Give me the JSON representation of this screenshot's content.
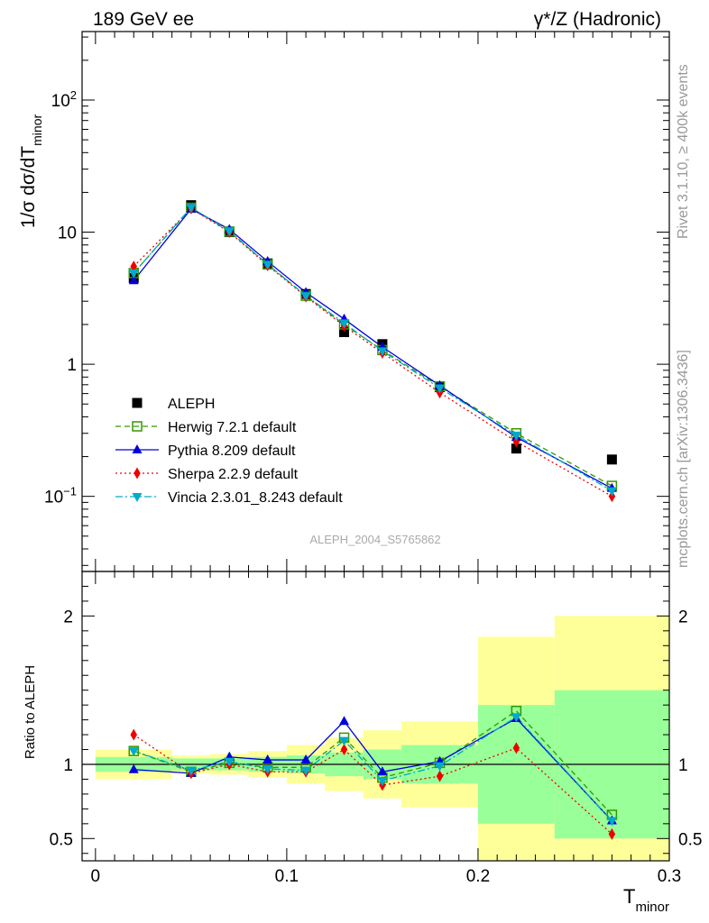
{
  "header": {
    "left": "189 GeV ee",
    "right": "γ*/Z (Hadronic)"
  },
  "side_text": {
    "rivet": "Rivet 3.1.10, ≥ 400k events",
    "mcplots": "mcplots.cern.ch [arXiv:1306.3436]"
  },
  "analysis_tag": "ALEPH_2004_S5765862",
  "chart_data": [
    {
      "type": "scatter",
      "panel": "main",
      "ylabel": "1/σ  dσ/dT",
      "ylabel_sub": "minor",
      "yscale": "log",
      "ylim": [
        0.027,
        330
      ],
      "xlim": [
        -0.007,
        0.3
      ],
      "y_ticks": [
        {
          "v": 0.1,
          "base": "10",
          "exp": "−1"
        },
        {
          "v": 1,
          "base": "1",
          "exp": ""
        },
        {
          "v": 10,
          "base": "10",
          "exp": ""
        },
        {
          "v": 100,
          "base": "10",
          "exp": "2"
        }
      ],
      "data": {
        "name": "ALEPH",
        "x": [
          0.02,
          0.05,
          0.07,
          0.09,
          0.11,
          0.13,
          0.15,
          0.18,
          0.22,
          0.27
        ],
        "y": [
          4.5,
          16.0,
          10.0,
          5.8,
          3.4,
          1.75,
          1.42,
          0.67,
          0.23,
          0.19
        ]
      },
      "series": [
        {
          "name": "Herwig 7.2.1 default",
          "color": "#339900",
          "marker": "open-square",
          "line": "dashed",
          "y": [
            4.9,
            15.3,
            10.1,
            5.7,
            3.3,
            2.0,
            1.28,
            0.68,
            0.3,
            0.12
          ]
        },
        {
          "name": "Pythia 8.209 default",
          "color": "#0000dd",
          "marker": "triangle-up",
          "line": "solid",
          "y": [
            4.3,
            15.0,
            10.5,
            6.0,
            3.5,
            2.2,
            1.35,
            0.69,
            0.28,
            0.115
          ]
        },
        {
          "name": "Sherpa 2.2.9 default",
          "color": "#ee0000",
          "marker": "diamond",
          "line": "dotted",
          "y": [
            5.5,
            15.1,
            10.0,
            5.6,
            3.25,
            1.95,
            1.22,
            0.61,
            0.26,
            0.1
          ]
        },
        {
          "name": "Vincia 2.3.01_8.243 default",
          "color": "#00aacc",
          "marker": "triangle-down",
          "line": "dashdot",
          "y": [
            4.9,
            15.4,
            10.2,
            5.7,
            3.3,
            2.05,
            1.26,
            0.66,
            0.29,
            0.11
          ]
        }
      ]
    },
    {
      "type": "scatter",
      "panel": "ratio",
      "ylabel": "Ratio to ALEPH",
      "xlabel": "T",
      "xlabel_sub": "minor",
      "ylim": [
        0.35,
        2.3
      ],
      "xlim": [
        -0.007,
        0.3
      ],
      "y_ticks": [
        0.5,
        1,
        2
      ],
      "x_ticks": [
        0,
        0.1,
        0.2,
        0.3
      ],
      "x_tick_labels": [
        "0",
        "0.1",
        "0.2",
        "0.3"
      ],
      "y_tick_labels": [
        "0.5",
        "1",
        "2"
      ],
      "bins": [
        {
          "lo": 0.0,
          "hi": 0.04,
          "stat": [
            0.95,
            1.05
          ],
          "total": [
            0.9,
            1.1
          ]
        },
        {
          "lo": 0.04,
          "hi": 0.06,
          "stat": [
            0.96,
            1.04
          ],
          "total": [
            0.94,
            1.06
          ]
        },
        {
          "lo": 0.06,
          "hi": 0.08,
          "stat": [
            0.96,
            1.04
          ],
          "total": [
            0.93,
            1.07
          ]
        },
        {
          "lo": 0.08,
          "hi": 0.1,
          "stat": [
            0.95,
            1.05
          ],
          "total": [
            0.91,
            1.09
          ]
        },
        {
          "lo": 0.1,
          "hi": 0.12,
          "stat": [
            0.94,
            1.06
          ],
          "total": [
            0.87,
            1.13
          ]
        },
        {
          "lo": 0.12,
          "hi": 0.14,
          "stat": [
            0.92,
            1.08
          ],
          "total": [
            0.82,
            1.18
          ]
        },
        {
          "lo": 0.14,
          "hi": 0.16,
          "stat": [
            0.9,
            1.1
          ],
          "total": [
            0.77,
            1.23
          ]
        },
        {
          "lo": 0.16,
          "hi": 0.2,
          "stat": [
            0.87,
            1.13
          ],
          "total": [
            0.71,
            1.29
          ]
        },
        {
          "lo": 0.2,
          "hi": 0.24,
          "stat": [
            0.6,
            1.4
          ],
          "total": [
            0.35,
            1.86
          ]
        },
        {
          "lo": 0.24,
          "hi": 0.3,
          "stat": [
            0.5,
            1.5
          ],
          "total": [
            0.35,
            2.0
          ]
        }
      ],
      "series": [
        {
          "name": "Herwig 7.2.1 default",
          "y": [
            1.09,
            0.95,
            1.01,
            0.98,
            0.98,
            1.18,
            0.91,
            1.01,
            1.36,
            0.66
          ]
        },
        {
          "name": "Pythia 8.209 default",
          "y": [
            0.965,
            0.94,
            1.05,
            1.03,
            1.03,
            1.29,
            0.95,
            1.02,
            1.31,
            0.62
          ]
        },
        {
          "name": "Sherpa 2.2.9 default",
          "y": [
            1.2,
            0.94,
            1.0,
            0.95,
            0.95,
            1.1,
            0.86,
            0.92,
            1.11,
            0.53
          ]
        },
        {
          "name": "Vincia 2.3.01_8.243 default",
          "y": [
            1.09,
            0.96,
            1.02,
            0.97,
            0.96,
            1.16,
            0.89,
            0.99,
            1.32,
            0.62
          ]
        }
      ]
    }
  ]
}
